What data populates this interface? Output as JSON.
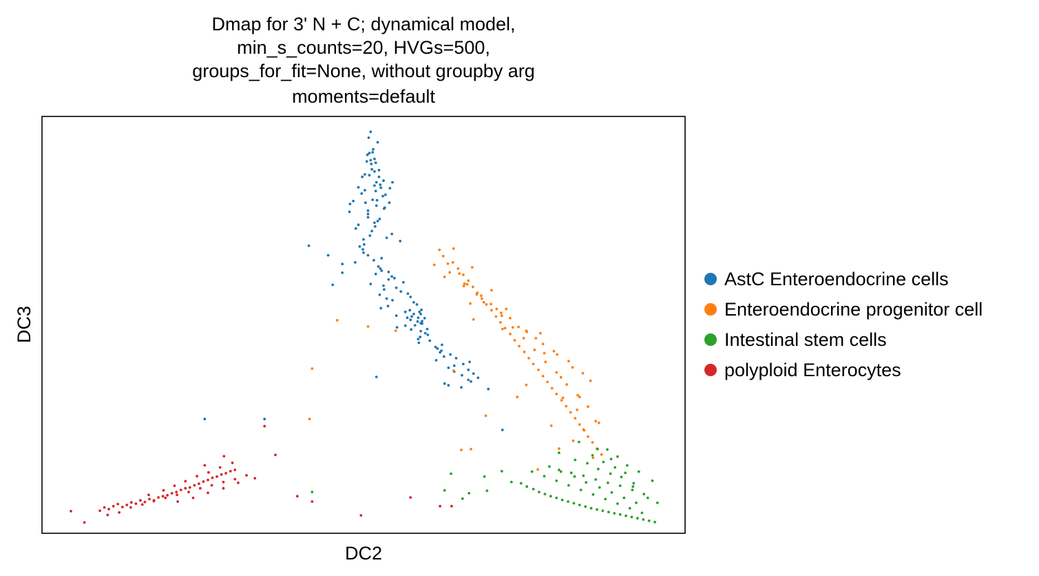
{
  "chart_data": {
    "type": "scatter",
    "title_lines": [
      "Dmap for 3' N + C; dynamical model,",
      "min_s_counts=20, HVGs=500,",
      "groups_for_fit=None, without groupby arg",
      "moments=default"
    ],
    "xlabel": "DC2",
    "ylabel": "DC3",
    "xlim": [
      0,
      100
    ],
    "ylim": [
      0,
      100
    ],
    "grid": false,
    "ticks": false,
    "legend": "right",
    "series": [
      {
        "name": "AstC Enteroendocrine cells",
        "color": "#1f77b4",
        "x": [
          51.1,
          50.8,
          51.5,
          50.6,
          51.7,
          51.2,
          52.4,
          50.9,
          49.8,
          53.1,
          52.0,
          51.7,
          52.7,
          50.2,
          49.7,
          53.0,
          51.4,
          48.4,
          50.3,
          47.9,
          52.0,
          53.3,
          50.7,
          47.8,
          50.7,
          50.7,
          52.5,
          52.2,
          51.7,
          49.2,
          51.8,
          48.8,
          51.3,
          54.4,
          51.0,
          53.6,
          50.0,
          55.7,
          50.1,
          49.4,
          49.9,
          50.0,
          50.7,
          52.8,
          51.6,
          48.7,
          46.7,
          52.3,
          52.6,
          52.8,
          53.9,
          51.9,
          54.4,
          54.8,
          53.9,
          56.2,
          51.1,
          53.1,
          55.1,
          53.2,
          55.8,
          56.9,
          52.5,
          57.3,
          53.6,
          54.5,
          57.8,
          58.3,
          53.8,
          52.7,
          59.0,
          56.5,
          58.9,
          55.1,
          56.8,
          57.3,
          58.4,
          59.1,
          56.5,
          55.2,
          59.9,
          58.9,
          59.6,
          60.0,
          58.8,
          58.5,
          60.3,
          58.6,
          62.2,
          61.2,
          61.5,
          62.1,
          61.9,
          63.5,
          62.5,
          64.4,
          61.3,
          66.5,
          65.5,
          64.1,
          63.2,
          66.3,
          64.1,
          67.1,
          65.3,
          67.8,
          66.3,
          66.7,
          62.6,
          63.2,
          65.2,
          69.4,
          57.8,
          58.5,
          59.1,
          58.0,
          57.5,
          58.9,
          59.5,
          58.7,
          57.2,
          57.4,
          46.7,
          45.2,
          44.5,
          41.5,
          52.0,
          34.6,
          25.3,
          71.6,
          51.7,
          51.1,
          51.4,
          52.4,
          51.9,
          50.2,
          49.2,
          53.4,
          54.0,
          50.9,
          52.2,
          51.9,
          51.3,
          50.5,
          52.6,
          52.1,
          54.1,
          53.2,
          54.5
        ],
        "y": [
          96.3,
          94.9,
          92.1,
          90.8,
          89.8,
          88.6,
          87.1,
          85.9,
          85.5,
          84.6,
          84.2,
          83.4,
          82.9,
          82.3,
          81.5,
          80.9,
          80.0,
          79.7,
          79.3,
          79.0,
          78.6,
          78.1,
          77.4,
          77.1,
          76.6,
          75.8,
          75.4,
          74.9,
          74.5,
          74.0,
          73.6,
          73.1,
          72.5,
          71.8,
          71.4,
          70.9,
          70.5,
          70.1,
          69.3,
          68.8,
          68.1,
          67.3,
          66.7,
          66.0,
          65.5,
          65.0,
          64.6,
          64.0,
          63.5,
          63.0,
          62.7,
          62.2,
          61.6,
          61.2,
          60.9,
          60.2,
          59.8,
          59.4,
          58.9,
          58.5,
          58.0,
          57.5,
          57.2,
          56.7,
          56.3,
          55.9,
          55.4,
          54.9,
          54.5,
          54.0,
          53.6,
          53.1,
          52.6,
          52.2,
          51.7,
          51.2,
          50.8,
          50.3,
          49.8,
          49.4,
          49.0,
          48.5,
          48.0,
          47.6,
          47.1,
          46.6,
          46.2,
          45.7,
          45.2,
          44.7,
          44.3,
          43.8,
          43.4,
          42.9,
          42.4,
          42.0,
          41.5,
          41.1,
          40.6,
          40.2,
          39.7,
          39.2,
          38.8,
          38.3,
          37.9,
          37.3,
          36.8,
          36.4,
          35.9,
          35.5,
          35.0,
          34.6,
          52.6,
          51.7,
          50.9,
          49.9,
          52.0,
          50.4,
          51.6,
          53.1,
          53.5,
          48.9,
          62.5,
          59.6,
          66.7,
          69.0,
          37.5,
          27.4,
          27.4,
          24.8,
          86.8,
          89.5,
          91.4,
          85.5,
          82.1,
          86.1,
          83.0,
          81.2,
          79.3,
          91.2,
          93.8,
          88.9,
          87.3,
          89.2,
          83.6,
          79.9,
          82.8,
          77.9,
          84.2
        ]
      },
      {
        "name": "Enteroendocrine progenitor cell",
        "color": "#ff7f0e",
        "x": [
          61.8,
          62.4,
          63.9,
          64.7,
          65.5,
          66.3,
          67.0,
          67.7,
          68.4,
          69.1,
          69.9,
          70.6,
          71.3,
          72.0,
          72.8,
          73.5,
          74.2,
          75.0,
          75.7,
          76.4,
          77.2,
          77.9,
          78.6,
          79.3,
          80.0,
          80.8,
          81.5,
          82.2,
          82.9,
          83.6,
          84.3,
          84.9,
          85.6,
          86.3,
          87.0,
          63.1,
          64.9,
          66.1,
          67.6,
          69.8,
          71.5,
          73.2,
          74.9,
          76.6,
          78.3,
          80.0,
          81.6,
          83.3,
          84.9,
          62.6,
          65.7,
          68.3,
          70.7,
          72.8,
          75.4,
          77.9,
          80.1,
          82.5,
          85.3,
          61.0,
          63.4,
          65.6,
          68.7,
          71.4,
          74.1,
          76.8,
          79.6,
          81.9,
          84.1,
          64.0,
          66.9,
          69.9,
          72.2,
          75.3,
          78.1,
          80.7,
          83.6,
          86.1,
          66.6,
          67.1,
          71.6,
          77.5,
          81.0,
          86.6,
          45.9,
          42.0,
          41.6,
          65.2,
          55.0,
          50.7,
          64.0,
          66.7,
          77.1,
          82.6,
          69.0,
          75.3,
          73.9,
          79.2,
          83.2,
          85.7,
          80.4,
          84.2
        ],
        "y": [
          68.0,
          66.5,
          65.0,
          63.5,
          62.0,
          60.6,
          59.1,
          57.7,
          56.3,
          54.9,
          53.5,
          52.0,
          50.6,
          49.2,
          47.8,
          46.3,
          44.9,
          43.5,
          42.0,
          40.6,
          39.2,
          37.7,
          36.3,
          34.8,
          33.4,
          31.9,
          30.5,
          29.0,
          27.6,
          26.1,
          24.7,
          23.2,
          21.8,
          20.3,
          18.9,
          64.7,
          62.3,
          59.7,
          57.3,
          55.0,
          52.2,
          49.4,
          46.8,
          44.0,
          41.1,
          38.6,
          35.7,
          33.1,
          30.4,
          61.5,
          59.9,
          57.0,
          53.8,
          51.6,
          48.3,
          45.4,
          42.9,
          39.8,
          36.6,
          64.4,
          62.6,
          59.3,
          55.4,
          52.9,
          49.5,
          46.8,
          43.7,
          41.3,
          38.4,
          68.3,
          63.8,
          58.3,
          53.8,
          48.6,
          43.2,
          37.4,
          32.7,
          26.9,
          55.1,
          51.3,
          49.0,
          48.0,
          32.5,
          26.5,
          51.1,
          39.5,
          27.4,
          20.0,
          48.6,
          49.6,
          39.0,
          20.2,
          15.3,
          22.2,
          28.2,
          35.6,
          32.7,
          25.8,
          29.6,
          18.1,
          20.3,
          24.9
        ]
      },
      {
        "name": "Intestinal stem cells",
        "color": "#2ca02c",
        "x": [
          74.5,
          75.4,
          76.4,
          77.3,
          78.2,
          79.1,
          80.0,
          80.9,
          81.8,
          82.7,
          83.6,
          84.5,
          85.4,
          86.3,
          87.2,
          88.1,
          89.0,
          89.9,
          90.8,
          91.7,
          92.6,
          93.5,
          94.4,
          95.3,
          76.2,
          78.1,
          80.0,
          81.9,
          83.8,
          85.7,
          87.6,
          89.5,
          91.4,
          93.3,
          78.9,
          80.7,
          82.8,
          84.6,
          86.7,
          88.6,
          90.5,
          92.4,
          80.4,
          82.3,
          84.2,
          86.1,
          88.0,
          89.9,
          91.8,
          94.2,
          82.9,
          84.8,
          86.5,
          88.4,
          90.1,
          92.0,
          85.6,
          87.3,
          89.1,
          90.7,
          87.9,
          89.5,
          91.0,
          92.8,
          94.9,
          91.9,
          93.6,
          95.7,
          73.0,
          71.5,
          69.2,
          66.4,
          63.6,
          62.6,
          65.4,
          68.8,
          80.4,
          83.5,
          86.4,
          88.5,
          42.0
        ],
        "y": [
          12.0,
          11.2,
          10.6,
          9.9,
          9.4,
          8.9,
          8.5,
          8.0,
          7.6,
          7.2,
          6.8,
          6.4,
          6.0,
          5.7,
          5.4,
          5.1,
          4.8,
          4.5,
          4.2,
          3.9,
          3.6,
          3.3,
          3.0,
          2.7,
          14.8,
          13.7,
          12.6,
          11.5,
          10.4,
          9.3,
          8.2,
          7.1,
          6.0,
          4.9,
          16.0,
          14.8,
          13.6,
          12.2,
          11.0,
          9.8,
          8.5,
          7.3,
          15.2,
          14.5,
          13.8,
          12.9,
          12.1,
          11.4,
          10.4,
          8.5,
          17.6,
          16.8,
          15.4,
          14.3,
          13.5,
          12.0,
          18.7,
          17.1,
          15.8,
          14.5,
          20.1,
          18.4,
          16.3,
          14.8,
          12.6,
          11.2,
          9.4,
          7.3,
          12.3,
          14.9,
          10.2,
          9.6,
          14.3,
          10.3,
          8.3,
          13.6,
          19.3,
          21.9,
          20.2,
          17.8,
          9.9
        ]
      },
      {
        "name": "polyploid Enterocytes",
        "color": "#d62728",
        "x": [
          4.5,
          6.6,
          9.0,
          9.7,
          10.4,
          11.1,
          11.8,
          12.5,
          13.2,
          13.9,
          14.6,
          15.3,
          16.0,
          16.7,
          17.4,
          18.1,
          18.8,
          19.5,
          20.2,
          20.9,
          21.6,
          22.3,
          23.0,
          23.7,
          24.4,
          25.1,
          25.8,
          26.5,
          27.2,
          27.9,
          28.6,
          29.3,
          30.0,
          10.2,
          12.0,
          13.8,
          15.6,
          17.4,
          19.2,
          21.0,
          22.8,
          24.6,
          26.4,
          28.2,
          30.0,
          31.8,
          16.6,
          18.9,
          20.6,
          22.3,
          24.1,
          25.9,
          27.7,
          29.6,
          21.1,
          23.5,
          25.8,
          28.2,
          30.5,
          33.1,
          25.3,
          28.3,
          36.3,
          39.7,
          42.0,
          49.6,
          57.3,
          61.9,
          63.7,
          34.6
        ],
        "y": [
          5.3,
          2.6,
          5.4,
          6.2,
          5.8,
          6.5,
          7.0,
          6.3,
          6.8,
          7.4,
          7.1,
          7.9,
          7.5,
          8.2,
          7.9,
          8.6,
          8.9,
          9.1,
          9.6,
          9.9,
          10.4,
          10.8,
          11.0,
          11.5,
          11.9,
          12.4,
          12.8,
          13.3,
          13.6,
          14.1,
          14.4,
          14.9,
          15.2,
          4.4,
          5.0,
          6.2,
          6.9,
          7.7,
          8.5,
          9.2,
          9.9,
          10.8,
          11.5,
          12.3,
          13.0,
          13.9,
          9.2,
          10.3,
          11.4,
          12.5,
          13.7,
          14.6,
          15.8,
          16.9,
          7.6,
          8.5,
          9.7,
          10.8,
          12.1,
          13.2,
          16.3,
          18.5,
          18.8,
          8.9,
          7.6,
          4.3,
          8.6,
          6.5,
          6.5,
          25.7
        ]
      }
    ]
  }
}
